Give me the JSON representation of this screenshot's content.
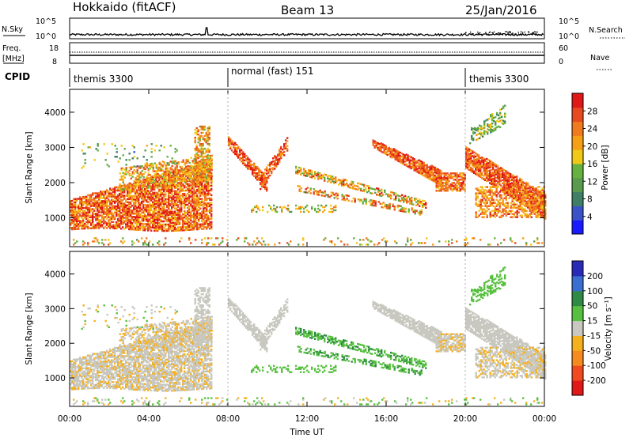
{
  "header": {
    "station": "Hokkaido (fitACF)",
    "beam": "Beam 13",
    "date": "25/Jan/2016"
  },
  "nsky_panel": {
    "left_label": "N.Sky",
    "left_ticks": [
      "10^5",
      "10^0"
    ],
    "right_label": "N.Search",
    "right_ticks": [
      "10^5",
      "10^0"
    ]
  },
  "freq_panel": {
    "left_label_1": "Freq.",
    "left_label_2": "[MHz]",
    "left_ticks": [
      "18",
      "8"
    ],
    "right_label": "Nave",
    "right_ticks": [
      "60",
      "0"
    ]
  },
  "cpid": {
    "label": "CPID",
    "segments": [
      {
        "text": "themis 3300",
        "start_h": 0,
        "end_h": 8
      },
      {
        "text": "normal (fast) 151",
        "start_h": 8,
        "end_h": 20
      },
      {
        "text": "themis 3300",
        "start_h": 20,
        "end_h": 24
      }
    ]
  },
  "chart_data": [
    {
      "type": "heatmap",
      "name": "power",
      "ylabel": "Slant Range [km]",
      "x_range_h": [
        0,
        24
      ],
      "y_range_km": [
        180,
        4650
      ],
      "y_ticks": [
        1000,
        2000,
        3000,
        4000
      ],
      "colorbar": {
        "label": "Power [dB]",
        "range": [
          0,
          32
        ],
        "ticks": [
          4,
          8,
          12,
          16,
          20,
          24,
          28
        ],
        "colors": [
          "#1a1aff",
          "#3a52c8",
          "#3f7f66",
          "#5a9a4e",
          "#66b240",
          "#f0c818",
          "#f5a014",
          "#f07a1e",
          "#e84a20",
          "#e01818"
        ]
      }
    },
    {
      "type": "heatmap",
      "name": "velocity",
      "ylabel": "Slant Range [km]",
      "x_range_h": [
        0,
        24
      ],
      "y_range_km": [
        180,
        4650
      ],
      "y_ticks": [
        1000,
        2000,
        3000,
        4000
      ],
      "colorbar": {
        "label": "Velocity [m s⁻¹]",
        "ticks": [
          "200",
          "100",
          "50",
          "15",
          "-15",
          "-50",
          "-100",
          "-200"
        ],
        "colors": [
          "#2a2ab8",
          "#3a6ed0",
          "#2f8a45",
          "#58c040",
          "#c8c8c0",
          "#f5b01e",
          "#f58a1e",
          "#f04a20",
          "#e01818"
        ]
      }
    }
  ],
  "x_axis": {
    "label": "Time UT",
    "ticks": [
      "00:00",
      "04:00",
      "08:00",
      "12:00",
      "16:00",
      "20:00",
      "00:00"
    ]
  },
  "colors": {
    "power_high": "#e01818",
    "power_mid": "#f5a014",
    "velocity_ground": "#c8c8c0",
    "velocity_toward": "#58c040"
  }
}
